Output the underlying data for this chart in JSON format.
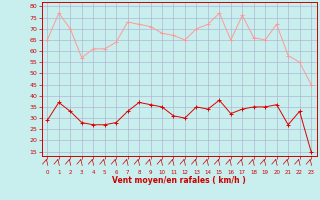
{
  "x": [
    0,
    1,
    2,
    3,
    4,
    5,
    6,
    7,
    8,
    9,
    10,
    11,
    12,
    13,
    14,
    15,
    16,
    17,
    18,
    19,
    20,
    21,
    22,
    23
  ],
  "rafales": [
    65,
    77,
    70,
    57,
    61,
    61,
    64,
    73,
    72,
    71,
    68,
    67,
    65,
    70,
    72,
    77,
    65,
    76,
    66,
    65,
    72,
    58,
    55,
    45
  ],
  "vent_moyen": [
    29,
    37,
    33,
    28,
    27,
    27,
    28,
    33,
    37,
    36,
    35,
    31,
    30,
    35,
    34,
    38,
    32,
    34,
    35,
    35,
    36,
    27,
    33,
    15
  ],
  "bg_color": "#c8eeee",
  "grid_color": "#aaaacc",
  "line_color_rafales": "#ff9999",
  "line_color_moyen": "#dd0000",
  "xlabel": "Vent moyen/en rafales ( km/h )",
  "ylim": [
    13,
    82
  ],
  "yticks": [
    15,
    20,
    25,
    30,
    35,
    40,
    45,
    50,
    55,
    60,
    65,
    70,
    75,
    80
  ],
  "xlim": [
    -0.5,
    23.5
  ],
  "spine_color": "#cc0000",
  "tick_color": "#cc0000",
  "xlabel_color": "#cc0000"
}
